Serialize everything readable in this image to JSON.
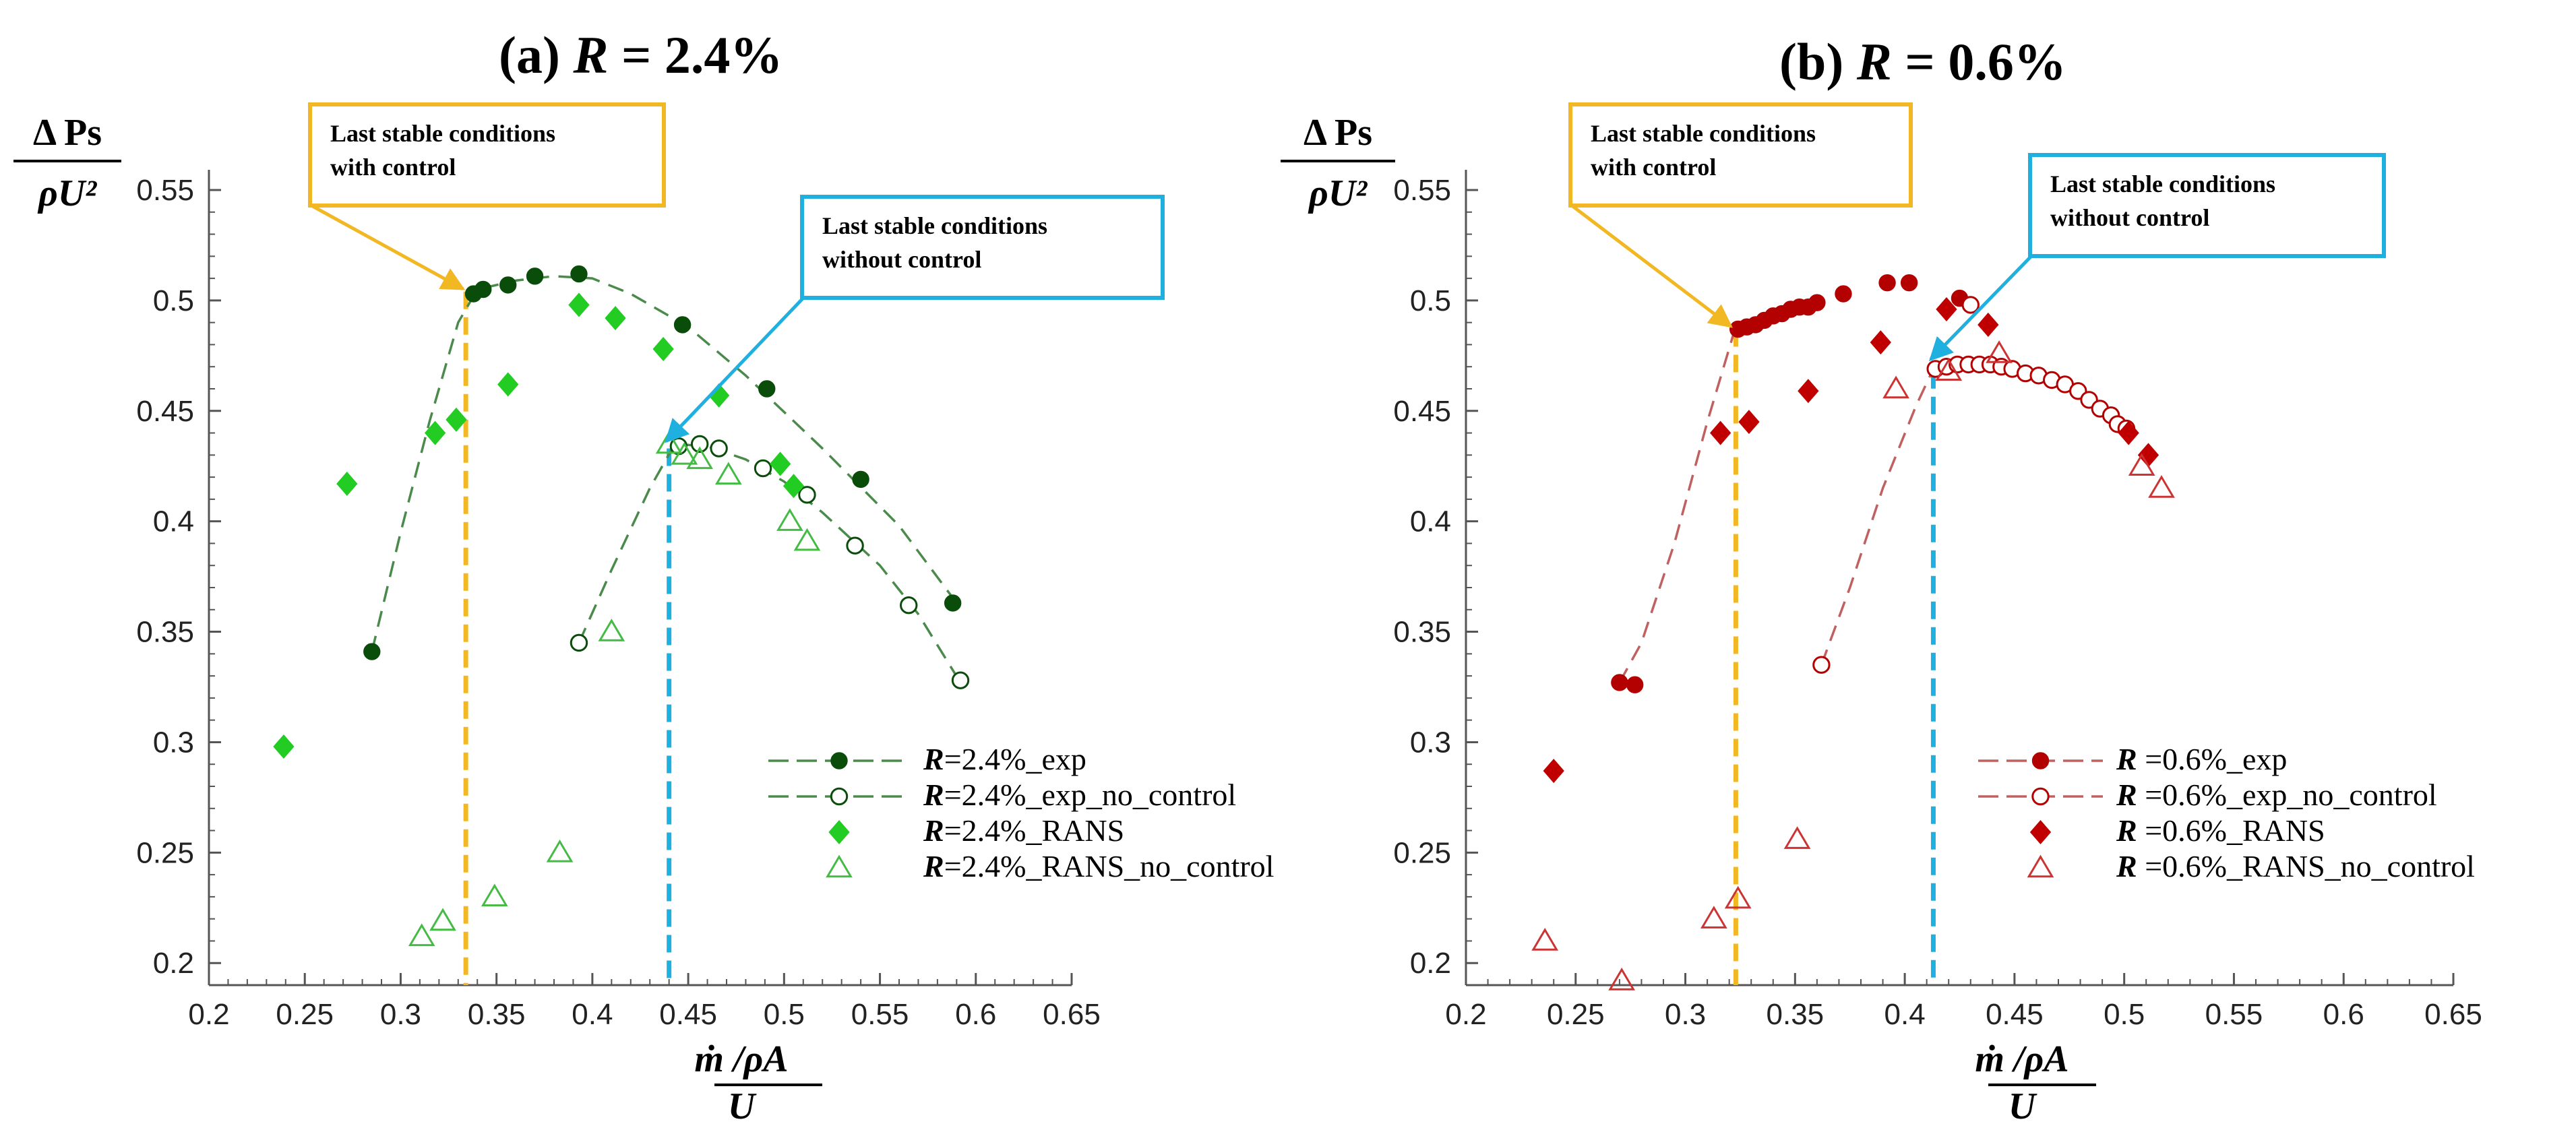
{
  "colors": {
    "exp_a": "#0a4d0a",
    "rans_a": "#22cc22",
    "rans_nc_a": "#44bb44",
    "fit_a": "#4a8a4a",
    "exp_b": "#b30000",
    "rans_b": "#c00000",
    "rans_nc_b": "#cc3333",
    "fit_b": "#c06060",
    "yellow": "#f2b824",
    "cyan": "#1fb0e0",
    "axis": "#555555"
  },
  "chart_data": [
    {
      "id": "a",
      "type": "scatter",
      "title_prefix": "(a)",
      "title_var": "R",
      "title_value": " = 2.4%",
      "ylabel_top": "Δ Ps",
      "ylabel_bottom": "ρU²",
      "xlabel_top": "ṁ /ρA",
      "xlabel_bottom": "U",
      "xlim": [
        0.2,
        0.65
      ],
      "ylim": [
        0.19,
        0.55
      ],
      "xticks": [
        "0.2",
        "0.25",
        "0.3",
        "0.35",
        "0.4",
        "0.45",
        "0.5",
        "0.55",
        "0.6",
        "0.65"
      ],
      "yticks": [
        "0.2",
        "0.25",
        "0.3",
        "0.35",
        "0.4",
        "0.45",
        "0.5",
        "0.55"
      ],
      "vlines": [
        {
          "x": 0.334,
          "color": "yellow",
          "ymax": 0.504
        },
        {
          "x": 0.44,
          "color": "cyan",
          "ymax": 0.433
        }
      ],
      "callouts": [
        {
          "lines": [
            "Last stable conditions",
            "with control"
          ],
          "color": "yellow",
          "target": [
            0.334,
            0.504
          ]
        },
        {
          "lines": [
            "Last stable conditions",
            "without control"
          ],
          "color": "cyan",
          "target": [
            0.44,
            0.435
          ]
        }
      ],
      "fit_curves": [
        {
          "x": [
            0.285,
            0.3,
            0.315,
            0.33,
            0.34,
            0.36,
            0.38,
            0.4,
            0.42,
            0.45,
            0.48,
            0.52,
            0.56,
            0.59
          ],
          "y": [
            0.341,
            0.395,
            0.445,
            0.49,
            0.505,
            0.509,
            0.511,
            0.51,
            0.503,
            0.488,
            0.466,
            0.433,
            0.398,
            0.363
          ]
        },
        {
          "x": [
            0.393,
            0.41,
            0.43,
            0.443,
            0.46,
            0.48,
            0.5,
            0.52,
            0.55,
            0.57,
            0.592
          ],
          "y": [
            0.345,
            0.378,
            0.415,
            0.435,
            0.434,
            0.428,
            0.418,
            0.404,
            0.38,
            0.358,
            0.327
          ]
        }
      ],
      "series": [
        {
          "name": "R=2.4%_exp",
          "legend_var": "R",
          "legend_suffix": "=2.4%_exp",
          "marker": "filled-circle",
          "color": "exp_a",
          "line": true,
          "x": [
            0.285,
            0.338,
            0.343,
            0.356,
            0.37,
            0.393,
            0.447,
            0.491,
            0.54,
            0.588
          ],
          "y": [
            0.341,
            0.503,
            0.505,
            0.507,
            0.511,
            0.512,
            0.489,
            0.46,
            0.419,
            0.363
          ]
        },
        {
          "name": "R=2.4%_exp_no_control",
          "legend_var": "R",
          "legend_suffix": "=2.4%_exp_no_control",
          "marker": "open-circle",
          "color": "exp_a",
          "line": true,
          "x": [
            0.393,
            0.445,
            0.456,
            0.466,
            0.489,
            0.512,
            0.537,
            0.565,
            0.592
          ],
          "y": [
            0.345,
            0.434,
            0.435,
            0.433,
            0.424,
            0.412,
            0.389,
            0.362,
            0.328
          ]
        },
        {
          "name": "R=2.4%_RANS",
          "legend_var": "R",
          "legend_suffix": "=2.4%_RANS",
          "marker": "filled-diamond",
          "color": "rans_a",
          "line": false,
          "x": [
            0.239,
            0.272,
            0.318,
            0.329,
            0.356,
            0.393,
            0.412,
            0.437,
            0.466,
            0.498,
            0.505
          ],
          "y": [
            0.298,
            0.417,
            0.44,
            0.446,
            0.462,
            0.498,
            0.492,
            0.478,
            0.457,
            0.426,
            0.416
          ]
        },
        {
          "name": "R=2.4%_RANS_no_control",
          "legend_var": "R",
          "legend_suffix": "=2.4%_RANS_no_control",
          "marker": "open-triangle",
          "color": "rans_nc_a",
          "line": false,
          "x": [
            0.311,
            0.322,
            0.349,
            0.383,
            0.41,
            0.44,
            0.448,
            0.456,
            0.471,
            0.503,
            0.512
          ],
          "y": [
            0.212,
            0.219,
            0.23,
            0.25,
            0.35,
            0.435,
            0.43,
            0.428,
            0.421,
            0.4,
            0.391
          ]
        }
      ]
    },
    {
      "id": "b",
      "type": "scatter",
      "title_prefix": "(b)",
      "title_var": "R",
      "title_value": " = 0.6%",
      "ylabel_top": "Δ Ps",
      "ylabel_bottom": "ρU²",
      "xlabel_top": "ṁ /ρA",
      "xlabel_bottom": "U",
      "xlim": [
        0.2,
        0.65
      ],
      "ylim": [
        0.19,
        0.55
      ],
      "xticks": [
        "0.2",
        "0.25",
        "0.3",
        "0.35",
        "0.4",
        "0.45",
        "0.5",
        "0.55",
        "0.6",
        "0.65"
      ],
      "yticks": [
        "0.2",
        "0.25",
        "0.3",
        "0.35",
        "0.4",
        "0.45",
        "0.5",
        "0.55"
      ],
      "vlines": [
        {
          "x": 0.323,
          "color": "yellow",
          "ymax": 0.487
        },
        {
          "x": 0.413,
          "color": "cyan",
          "ymax": 0.468
        }
      ],
      "callouts": [
        {
          "lines": [
            "Last stable conditions",
            "with control"
          ],
          "color": "yellow",
          "target": [
            0.322,
            0.487
          ]
        },
        {
          "lines": [
            "Last stable conditions",
            "without control"
          ],
          "color": "cyan",
          "target": [
            0.413,
            0.472
          ]
        }
      ],
      "fit_curves": [
        {
          "x": [
            0.27,
            0.28,
            0.295,
            0.31,
            0.322
          ],
          "y": [
            0.327,
            0.345,
            0.39,
            0.445,
            0.485
          ]
        },
        {
          "x": [
            0.362,
            0.375,
            0.39,
            0.405,
            0.413
          ],
          "y": [
            0.335,
            0.37,
            0.415,
            0.452,
            0.469
          ]
        }
      ],
      "series": [
        {
          "name": "R=0.6%_exp",
          "legend_var": "R",
          "legend_suffix": " =0.6%_exp",
          "marker": "filled-circle",
          "color": "exp_b",
          "line": true,
          "x": [
            0.27,
            0.277,
            0.324,
            0.328,
            0.332,
            0.336,
            0.34,
            0.344,
            0.348,
            0.352,
            0.356,
            0.36,
            0.372,
            0.392,
            0.402,
            0.425
          ],
          "y": [
            0.327,
            0.326,
            0.487,
            0.488,
            0.489,
            0.491,
            0.493,
            0.494,
            0.496,
            0.497,
            0.497,
            0.499,
            0.503,
            0.508,
            0.508,
            0.501
          ]
        },
        {
          "name": "R=0.6%_exp_no_control",
          "legend_var": "R",
          "legend_suffix": " =0.6%_exp_no_control",
          "marker": "open-circle",
          "color": "exp_b",
          "line": true,
          "x": [
            0.362,
            0.414,
            0.419,
            0.424,
            0.429,
            0.434,
            0.439,
            0.444,
            0.449,
            0.455,
            0.461,
            0.467,
            0.473,
            0.479,
            0.484,
            0.489,
            0.494,
            0.497,
            0.501,
            0.43
          ],
          "y": [
            0.335,
            0.469,
            0.47,
            0.471,
            0.471,
            0.471,
            0.471,
            0.47,
            0.469,
            0.467,
            0.466,
            0.464,
            0.462,
            0.459,
            0.455,
            0.451,
            0.448,
            0.444,
            0.442,
            0.498
          ]
        },
        {
          "name": "R=0.6%_RANS",
          "legend_var": "R",
          "legend_suffix": " =0.6%_RANS",
          "marker": "filled-diamond",
          "color": "rans_b",
          "line": false,
          "x": [
            0.24,
            0.316,
            0.329,
            0.356,
            0.389,
            0.419,
            0.438,
            0.502,
            0.511
          ],
          "y": [
            0.287,
            0.44,
            0.445,
            0.459,
            0.481,
            0.496,
            0.489,
            0.44,
            0.43
          ]
        },
        {
          "name": "R=0.6%_RANS_no_control",
          "legend_var": "R",
          "legend_suffix": " =0.6%_RANS_no_control",
          "marker": "open-triangle",
          "color": "rans_nc_b",
          "line": false,
          "x": [
            0.236,
            0.271,
            0.313,
            0.324,
            0.351,
            0.396,
            0.42,
            0.443,
            0.508,
            0.517
          ],
          "y": [
            0.21,
            0.192,
            0.22,
            0.229,
            0.256,
            0.46,
            0.468,
            0.476,
            0.425,
            0.415
          ]
        }
      ]
    }
  ]
}
